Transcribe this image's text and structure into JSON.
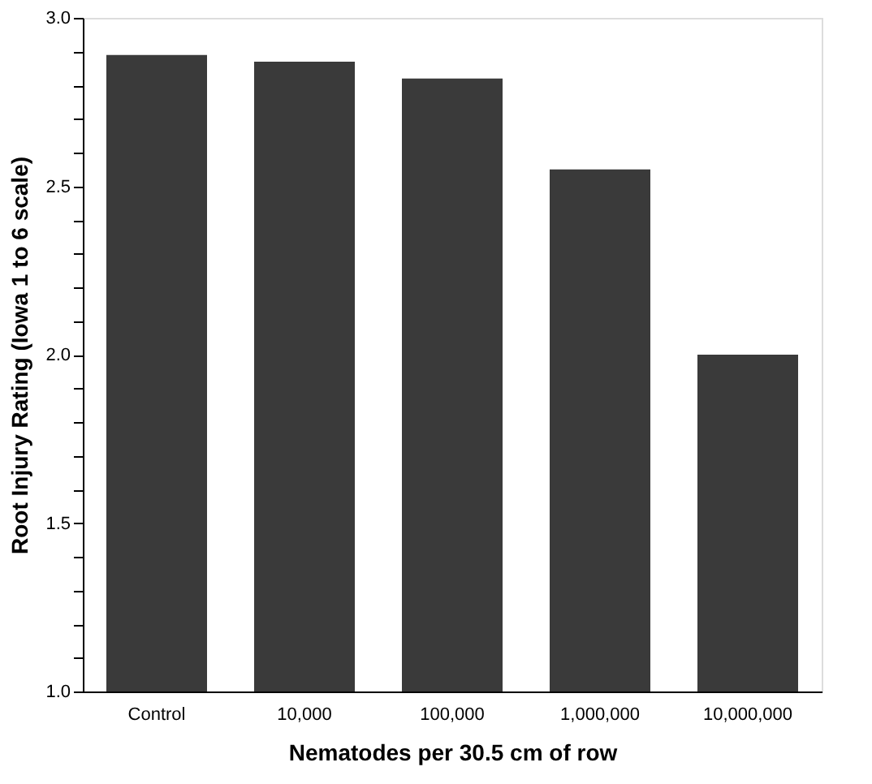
{
  "chart_data": {
    "type": "bar",
    "xlabel": "Nematodes per 30.5 cm of row",
    "ylabel": "Root Injury Rating (Iowa 1 to 6 scale)",
    "categories": [
      "Control",
      "10,000",
      "100,000",
      "1,000,000",
      "10,000,000"
    ],
    "values": [
      2.89,
      2.87,
      2.82,
      2.55,
      2.0
    ],
    "color": "#3a3a3a",
    "ylim": [
      1.0,
      3.0
    ],
    "yticks": [
      "1.0",
      {
        "value": 1.1,
        "label": null
      },
      {
        "value": 1.2,
        "label": null
      },
      {
        "value": 1.3,
        "label": null
      },
      {
        "value": 1.4,
        "label": null
      },
      {
        "value": 1.5,
        "label": "1.5"
      },
      {
        "value": 1.6,
        "label": null
      },
      {
        "value": 1.7,
        "label": null
      },
      {
        "value": 1.8,
        "label": null
      },
      {
        "value": 1.9,
        "label": null
      },
      {
        "value": 2.0,
        "label": "2.0"
      },
      {
        "value": 2.1,
        "label": null
      },
      {
        "value": 2.2,
        "label": null
      },
      {
        "value": 2.3,
        "label": null
      },
      {
        "value": 2.4,
        "label": null
      },
      {
        "value": 2.5,
        "label": "2.5"
      },
      {
        "value": 2.6,
        "label": null
      },
      {
        "value": 2.7,
        "label": null
      },
      {
        "value": 2.8,
        "label": null
      },
      {
        "value": 2.9,
        "label": null
      },
      {
        "value": 3.0,
        "label": "3.0"
      }
    ],
    "grid": false
  }
}
